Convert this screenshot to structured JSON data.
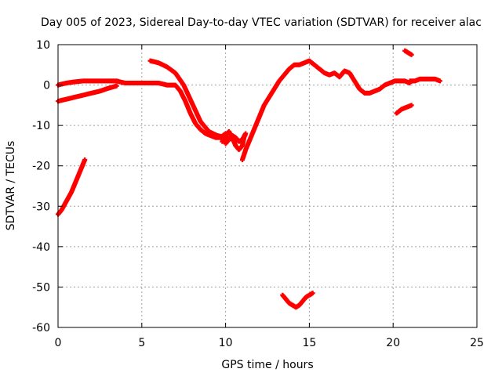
{
  "chart_data": {
    "type": "scatter",
    "title": "Day 005 of 2023, Sidereal Day-to-day VTEC variation (SDTVAR) for receiver alac",
    "xlabel": "GPS time / hours",
    "ylabel": "SDTVAR / TECUs",
    "xlim": [
      0,
      25
    ],
    "ylim": [
      -60,
      10
    ],
    "xticks": [
      0,
      5,
      10,
      15,
      20,
      25
    ],
    "yticks": [
      10,
      0,
      -10,
      -20,
      -30,
      -40,
      -50,
      -60
    ],
    "grid": true,
    "legend": "none",
    "marker_color": "#ff0000",
    "series": [
      {
        "name": "upper-band",
        "x": [
          0.0,
          0.5,
          1.0,
          1.5,
          2.0,
          2.5,
          3.0,
          3.5,
          4.0,
          4.5,
          5.0,
          5.5,
          6.0,
          6.5,
          7.0,
          7.3,
          7.6,
          7.9,
          8.2,
          8.5,
          8.8,
          9.1,
          9.4,
          9.7,
          10.0
        ],
        "values": [
          0.0,
          0.5,
          0.8,
          1.0,
          1.0,
          1.0,
          1.0,
          1.0,
          0.5,
          0.5,
          0.5,
          0.5,
          0.5,
          0.0,
          0.0,
          -1.5,
          -4.0,
          -7.0,
          -9.5,
          -11.0,
          -12.0,
          -12.5,
          -13.0,
          -13.0,
          -12.0
        ]
      },
      {
        "name": "lower-band",
        "x": [
          0.0,
          0.5,
          1.0,
          1.5,
          2.0,
          2.5,
          3.0,
          3.5
        ],
        "values": [
          -4.0,
          -3.5,
          -3.0,
          -2.5,
          -2.0,
          -1.5,
          -0.8,
          -0.2
        ]
      },
      {
        "name": "early-rise",
        "x": [
          0.0,
          0.2,
          0.4,
          0.6,
          0.8,
          1.0,
          1.2,
          1.4,
          1.6
        ],
        "values": [
          -32.0,
          -31.0,
          -29.5,
          -28.0,
          -26.5,
          -24.5,
          -22.5,
          -20.5,
          -18.5
        ]
      },
      {
        "name": "post-sunrise-arc",
        "x": [
          5.5,
          6.0,
          6.5,
          7.0,
          7.5,
          8.0,
          8.5,
          9.0,
          9.5,
          10.0,
          10.5,
          11.0
        ],
        "values": [
          6.0,
          5.5,
          4.5,
          3.0,
          0.0,
          -4.5,
          -9.0,
          -11.5,
          -12.5,
          -13.0,
          -13.5,
          -14.0
        ]
      },
      {
        "name": "trough-loops",
        "x": [
          9.8,
          10.0,
          10.2,
          10.4,
          10.6,
          10.8,
          11.0,
          11.1,
          11.2,
          11.0,
          10.8,
          10.6,
          10.4,
          10.2,
          10.0
        ],
        "values": [
          -14.0,
          -12.5,
          -11.5,
          -13.0,
          -15.0,
          -16.0,
          -15.0,
          -13.0,
          -12.0,
          -13.5,
          -14.0,
          -13.0,
          -12.5,
          -13.5,
          -14.5
        ]
      },
      {
        "name": "main-recovery",
        "x": [
          11.0,
          11.2,
          11.4,
          11.6,
          11.8,
          12.0,
          12.3,
          12.6,
          12.9,
          13.2,
          13.5,
          13.8,
          14.1,
          14.4,
          14.7,
          15.0,
          15.3,
          15.6,
          15.9,
          16.2,
          16.5,
          16.8,
          17.1,
          17.4,
          17.7,
          18.0,
          18.3,
          18.6,
          18.9,
          19.2,
          19.5,
          19.8,
          20.1,
          20.4,
          20.7,
          21.0
        ],
        "values": [
          -18.5,
          -16.0,
          -14.0,
          -12.0,
          -10.0,
          -8.0,
          -5.0,
          -3.0,
          -1.0,
          1.0,
          2.5,
          4.0,
          5.0,
          5.0,
          5.5,
          6.0,
          5.0,
          4.0,
          3.0,
          2.5,
          3.0,
          2.0,
          3.5,
          3.0,
          1.0,
          -1.0,
          -2.0,
          -2.0,
          -1.5,
          -1.0,
          0.0,
          0.5,
          1.0,
          1.0,
          1.0,
          0.5
        ]
      },
      {
        "name": "late-evening",
        "x": [
          21.0,
          21.3,
          21.6,
          21.9,
          22.2,
          22.5,
          22.8
        ],
        "values": [
          1.0,
          1.0,
          1.5,
          1.5,
          1.5,
          1.5,
          1.0
        ]
      },
      {
        "name": "late-high",
        "x": [
          20.7,
          20.9,
          21.1
        ],
        "values": [
          8.5,
          8.0,
          7.5
        ]
      },
      {
        "name": "late-low",
        "x": [
          20.2,
          20.5,
          20.8,
          21.1
        ],
        "values": [
          -7.0,
          -6.0,
          -5.5,
          -5.0
        ]
      },
      {
        "name": "deep-dip",
        "x": [
          13.4,
          13.6,
          13.8,
          14.0,
          14.2,
          14.4,
          14.6,
          14.8,
          15.0,
          15.2
        ],
        "values": [
          -52.0,
          -53.0,
          -54.0,
          -54.5,
          -55.0,
          -54.5,
          -53.5,
          -52.5,
          -52.0,
          -51.5
        ]
      }
    ]
  }
}
